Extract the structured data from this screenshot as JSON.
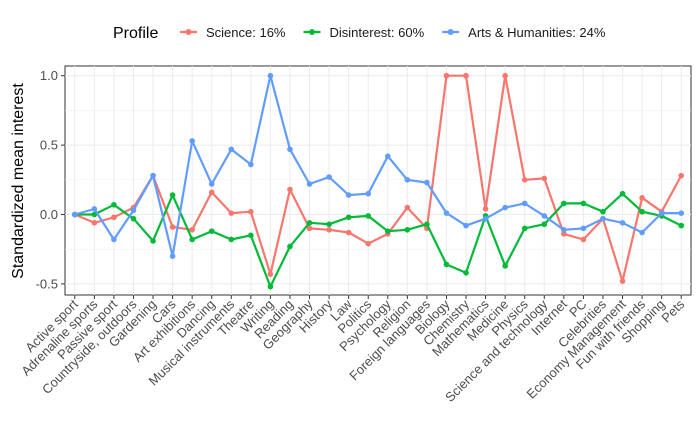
{
  "chart_data": {
    "type": "line",
    "title": "",
    "xlabel": "",
    "ylabel": "Standardized mean interest",
    "ylim": [
      -0.58,
      1.07
    ],
    "yticks": [
      -0.5,
      0.0,
      0.5,
      1.0
    ],
    "ytick_labels": [
      "-0.5",
      "0.0",
      "0.5",
      "1.0"
    ],
    "grid": true,
    "legend_title": "Profile",
    "legend_position": "top",
    "categories": [
      "Active sport",
      "Adrenaline sports",
      "Passive sport",
      "Countryside, outdoors",
      "Gardening",
      "Cars",
      "Art exhibitions",
      "Dancing",
      "Musical instruments",
      "Theatre",
      "Writing",
      "Reading",
      "Geography",
      "History",
      "Law",
      "Politics",
      "Psychology",
      "Religion",
      "Foreign languages",
      "Biology",
      "Chemistry",
      "Mathematics",
      "Medicine",
      "Physics",
      "Science and technology",
      "Internet",
      "PC",
      "Celebrities",
      "Economy Management",
      "Fun with friends",
      "Shopping",
      "Pets"
    ],
    "series": [
      {
        "name": "Science: 16%",
        "color": "#F8766D",
        "values": [
          0.0,
          -0.06,
          -0.02,
          0.05,
          0.28,
          -0.09,
          -0.11,
          0.16,
          0.01,
          0.02,
          -0.43,
          0.18,
          -0.1,
          -0.11,
          -0.13,
          -0.21,
          -0.14,
          0.05,
          -0.1,
          1.0,
          1.0,
          0.04,
          1.0,
          0.25,
          0.26,
          -0.14,
          -0.18,
          -0.03,
          -0.48,
          0.12,
          0.02,
          0.28
        ]
      },
      {
        "name": "Disinterest: 60%",
        "color": "#00BA38",
        "values": [
          0.0,
          0.0,
          0.07,
          -0.03,
          -0.19,
          0.14,
          -0.18,
          -0.12,
          -0.18,
          -0.15,
          -0.52,
          -0.23,
          -0.06,
          -0.07,
          -0.02,
          -0.01,
          -0.12,
          -0.11,
          -0.07,
          -0.36,
          -0.42,
          -0.01,
          -0.37,
          -0.1,
          -0.07,
          0.08,
          0.08,
          0.02,
          0.15,
          0.02,
          -0.01,
          -0.08
        ]
      },
      {
        "name": "Arts & Humanities: 24%",
        "color": "#619CFF",
        "values": [
          0.0,
          0.04,
          -0.18,
          0.03,
          0.28,
          -0.3,
          0.53,
          0.22,
          0.47,
          0.36,
          1.0,
          0.47,
          0.22,
          0.27,
          0.14,
          0.15,
          0.42,
          0.25,
          0.23,
          0.01,
          -0.08,
          -0.03,
          0.05,
          0.08,
          -0.01,
          -0.11,
          -0.1,
          -0.03,
          -0.06,
          -0.13,
          0.01,
          0.01
        ]
      }
    ]
  }
}
